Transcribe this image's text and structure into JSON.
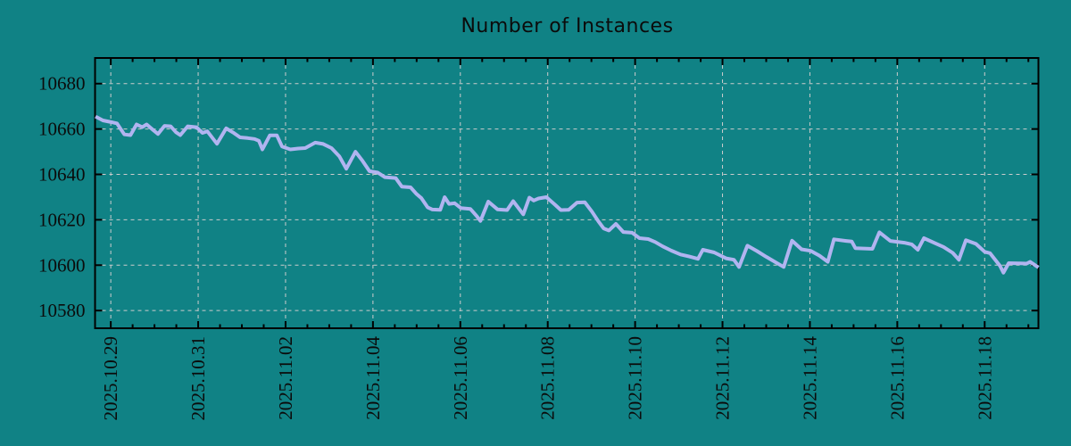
{
  "colors": {
    "background": "#108285",
    "line": "#b1b4f0",
    "grid": "#cccccc",
    "axis": "#000000",
    "text": "#0b0b0b"
  },
  "chart_data": {
    "type": "line",
    "title": "Number of Instances",
    "grid": true,
    "legend": "none",
    "x_axis_note": "dates, vertical labels; x encoded as days after first tick 2025.10.29",
    "x_tick_labels": [
      "2025.10.29",
      "2025.10.31",
      "2025.11.02",
      "2025.11.04",
      "2025.11.06",
      "2025.11.08",
      "2025.11.10",
      "2025.11.12",
      "2025.11.14",
      "2025.11.16",
      "2025.11.18"
    ],
    "x_tick_days": [
      0,
      2,
      4,
      6,
      8,
      10,
      12,
      14,
      16,
      18,
      20
    ],
    "x_minor_step_days": 0.5,
    "y_ticks": [
      10580,
      10600,
      10620,
      10640,
      10660,
      10680
    ],
    "xlim_days": [
      -0.36,
      21.23
    ],
    "ylim": [
      10572.2,
      10691.3
    ],
    "series": [
      {
        "name": "instances",
        "x_days": [
          -0.35,
          -0.18,
          0.02,
          0.14,
          0.2,
          0.31,
          0.45,
          0.59,
          0.72,
          0.82,
          0.98,
          1.08,
          1.23,
          1.37,
          1.49,
          1.59,
          1.76,
          1.96,
          2.1,
          2.21,
          2.43,
          2.64,
          2.82,
          2.96,
          3.13,
          3.29,
          3.39,
          3.47,
          3.64,
          3.8,
          3.92,
          4.11,
          4.29,
          4.45,
          4.68,
          4.86,
          5.05,
          5.23,
          5.39,
          5.6,
          5.76,
          5.92,
          6.11,
          6.27,
          6.52,
          6.66,
          6.86,
          6.99,
          7.11,
          7.25,
          7.36,
          7.54,
          7.64,
          7.74,
          7.87,
          8.01,
          8.23,
          8.38,
          8.46,
          8.64,
          8.85,
          9.07,
          9.21,
          9.44,
          9.58,
          9.68,
          9.79,
          9.97,
          10.17,
          10.3,
          10.48,
          10.67,
          10.85,
          11.01,
          11.16,
          11.28,
          11.4,
          11.56,
          11.73,
          11.93,
          12.1,
          12.3,
          12.46,
          12.63,
          12.83,
          13.04,
          13.24,
          13.44,
          13.55,
          13.81,
          14.08,
          14.26,
          14.38,
          14.57,
          14.79,
          15.0,
          15.22,
          15.4,
          15.59,
          15.81,
          16.02,
          16.22,
          16.41,
          16.55,
          16.83,
          16.96,
          17.04,
          17.43,
          17.59,
          17.84,
          18.16,
          18.33,
          18.47,
          18.61,
          18.86,
          19.06,
          19.27,
          19.41,
          19.57,
          19.8,
          20.0,
          20.12,
          20.35,
          20.43,
          20.55,
          20.78,
          20.96,
          21.04,
          21.23
        ],
        "values": [
          10665.5,
          10663.8,
          10663.0,
          10662.5,
          10660.8,
          10657.6,
          10657.3,
          10662.0,
          10660.8,
          10662.0,
          10659.4,
          10657.8,
          10661.4,
          10661.2,
          10658.6,
          10657.3,
          10661.2,
          10660.8,
          10658.3,
          10659.0,
          10653.5,
          10660.3,
          10658.2,
          10656.3,
          10656.0,
          10655.6,
          10654.8,
          10651.0,
          10657.2,
          10657.2,
          10652.3,
          10651.0,
          10651.4,
          10651.6,
          10654.0,
          10653.4,
          10651.6,
          10648.0,
          10642.5,
          10650.0,
          10646.0,
          10641.4,
          10640.8,
          10638.8,
          10638.4,
          10634.6,
          10634.3,
          10631.5,
          10629.5,
          10625.5,
          10624.5,
          10624.4,
          10630.0,
          10627.0,
          10627.3,
          10625.2,
          10624.8,
          10621.5,
          10619.5,
          10628.0,
          10624.6,
          10624.3,
          10628.2,
          10622.4,
          10629.8,
          10628.5,
          10629.4,
          10630.0,
          10626.6,
          10624.3,
          10624.4,
          10627.6,
          10627.7,
          10623.6,
          10619.3,
          10616.2,
          10615.3,
          10618.2,
          10614.6,
          10614.3,
          10611.9,
          10611.5,
          10610.2,
          10608.3,
          10606.4,
          10604.7,
          10603.8,
          10602.8,
          10606.8,
          10605.6,
          10603.0,
          10602.4,
          10599.2,
          10608.6,
          10606.2,
          10603.7,
          10601.2,
          10599.2,
          10610.8,
          10607.0,
          10606.3,
          10604.2,
          10601.5,
          10611.4,
          10610.7,
          10610.4,
          10607.5,
          10607.2,
          10614.5,
          10610.7,
          10609.9,
          10609.2,
          10606.8,
          10611.9,
          10609.7,
          10608.0,
          10605.4,
          10602.4,
          10611.0,
          10609.4,
          10605.9,
          10605.3,
          10599.7,
          10596.7,
          10600.9,
          10600.8,
          10600.7,
          10601.5,
          10599.0
        ]
      }
    ]
  }
}
